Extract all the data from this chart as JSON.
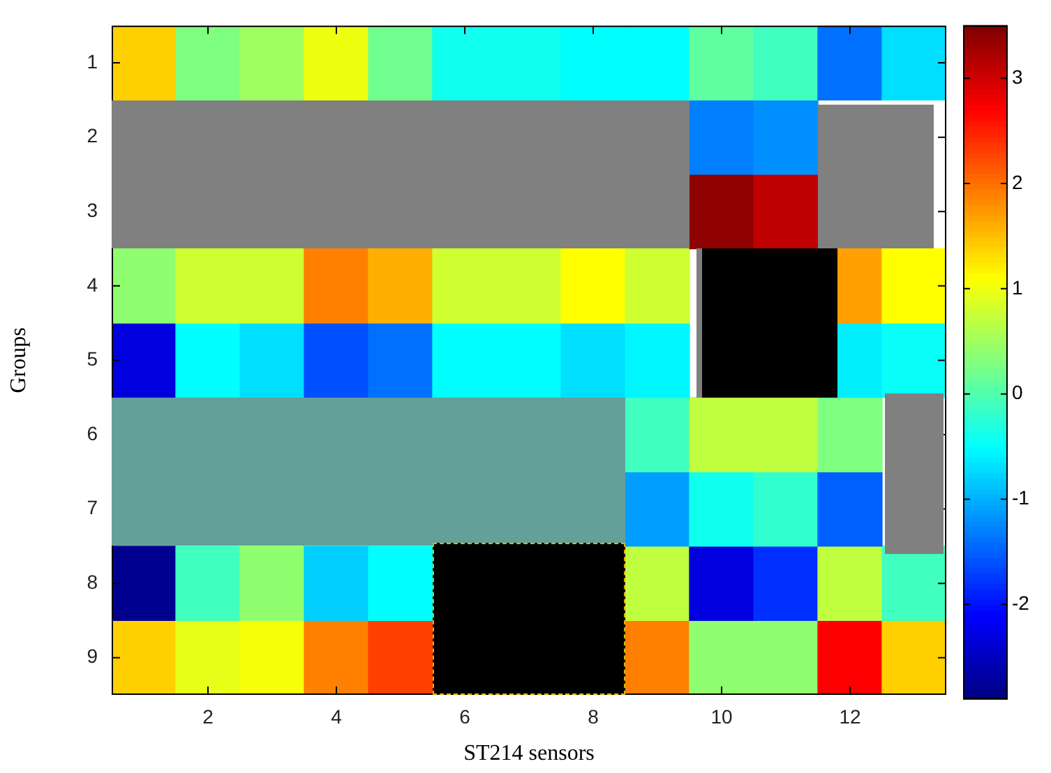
{
  "chart_data": {
    "type": "heatmap",
    "xlabel": "ST214 sensors",
    "ylabel": "Groups",
    "categories": [
      null,
      "2",
      null,
      "4",
      null,
      "6",
      null,
      "8",
      null,
      "10",
      null,
      "12",
      null
    ],
    "y_categories": [
      "1",
      "2",
      "3",
      "4",
      "5",
      "6",
      "7",
      "8",
      "9"
    ],
    "cells": [
      [
        1.4,
        0.3,
        0.5,
        1.0,
        0.2,
        -0.4,
        -0.4,
        -0.5,
        -0.5,
        0.1,
        -0.1,
        -1.4,
        -0.7
      ],
      [
        null,
        null,
        null,
        null,
        null,
        null,
        null,
        null,
        null,
        -1.3,
        -1.2,
        null,
        null
      ],
      [
        null,
        null,
        null,
        null,
        null,
        null,
        null,
        null,
        null,
        3.4,
        3.1,
        null,
        null
      ],
      [
        0.4,
        0.8,
        0.8,
        1.9,
        1.6,
        0.8,
        0.8,
        1.1,
        0.8,
        null,
        null,
        1.7,
        1.1
      ],
      [
        -2.3,
        -0.5,
        -0.7,
        -1.6,
        -1.4,
        -0.5,
        -0.5,
        -0.7,
        -0.55,
        null,
        null,
        -0.6,
        -0.45
      ],
      [
        null,
        null,
        null,
        null,
        null,
        null,
        null,
        null,
        -0.1,
        0.7,
        0.7,
        0.3,
        null
      ],
      [
        null,
        null,
        null,
        null,
        null,
        null,
        null,
        null,
        -1.1,
        -0.4,
        -0.2,
        -1.5,
        null
      ],
      [
        -2.8,
        -0.1,
        0.4,
        -0.8,
        -0.5,
        null,
        null,
        null,
        0.7,
        -2.3,
        -1.8,
        0.7,
        -0.1
      ],
      [
        1.4,
        0.95,
        1.05,
        1.9,
        2.3,
        null,
        null,
        null,
        1.9,
        0.4,
        0.4,
        2.7,
        1.4
      ]
    ],
    "clim": [
      -2.9,
      3.5
    ],
    "cticks": [
      3,
      2,
      1,
      0,
      -1,
      -2
    ]
  }
}
